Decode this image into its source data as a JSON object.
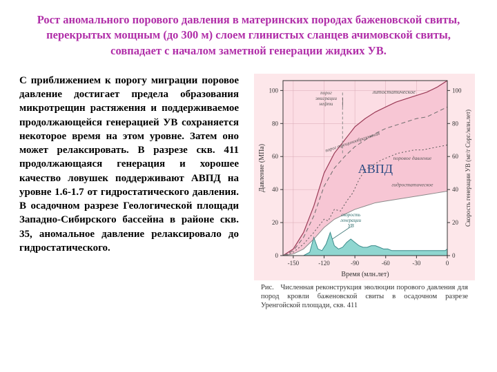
{
  "title": "Рост аномального порового давления в материнских породах баженовской свиты, перекрытых мощным (до 300 м) слоем глинистых сланцев ачимовской свиты, совпадает с началом заметной генерации жидких УВ.",
  "body": "С приближением к порогу миграции поровое давление достигает предела образования микротрещин растяжения и поддерживаемое продолжающейся генерацией УВ сохраняется некоторое время на этом уровне. Затем оно может релаксировать. В разрезе скв. 411 продолжающаяся генерация и хорошее качество ловушек поддерживают АВПД на уровне 1.6-1.7 от гидростатического давления. В осадочном разрезе Геологической площади Западно-Сибирского бассейна в районе скв. 35, аномальное давление релаксировало до гидростатического.",
  "caption_prefix": "Рис.",
  "caption": "Численная реконструкция эволюции порового давления для пород кровли баженовской свиты в осадочном разрезе Уренгойской площади, скв. 411",
  "chart": {
    "type": "line-area",
    "background_color": "#fde7ea",
    "plot_background": "#fcdde4",
    "grid_color": "#d8a8b4",
    "axis_color": "#333333",
    "text_color": "#333333",
    "avpd_label": "АВПД",
    "avpd_label_color": "#2a4a82",
    "avpd_fontsize": 18,
    "x_label": "Время (млн.лет)",
    "y_left_label": "Давление (МПа)",
    "y_right_label": "Скорость генерации УВ (мг/г Cорг./млн.лет)",
    "label_fontsize": 10,
    "tick_fontsize": 9,
    "x_ticks": [
      -150,
      -120,
      -90,
      -60,
      -30,
      0
    ],
    "y_left_ticks": [
      0,
      20,
      40,
      60,
      80,
      100
    ],
    "y_right_ticks": [
      0,
      20,
      40,
      60,
      80,
      100
    ],
    "xlim": [
      -160,
      0
    ],
    "ylim": [
      0,
      106
    ],
    "series": {
      "lithostatic": {
        "label": "литостатическое",
        "color": "#9a3a56",
        "fill": "#f7c6d4",
        "width": 1.2,
        "dash": "none",
        "points": [
          [
            -160,
            0
          ],
          [
            -150,
            4
          ],
          [
            -140,
            14
          ],
          [
            -130,
            30
          ],
          [
            -120,
            50
          ],
          [
            -110,
            62
          ],
          [
            -100,
            70
          ],
          [
            -90,
            78
          ],
          [
            -80,
            83
          ],
          [
            -70,
            87
          ],
          [
            -60,
            90
          ],
          [
            -50,
            93
          ],
          [
            -40,
            95
          ],
          [
            -30,
            97
          ],
          [
            -20,
            99
          ],
          [
            -10,
            102
          ],
          [
            0,
            106
          ]
        ]
      },
      "fracture_threshold": {
        "label": "порог трещинообразования",
        "color": "#6b6b6b",
        "width": 1,
        "dash": "6 4",
        "points": [
          [
            -160,
            0
          ],
          [
            -150,
            3
          ],
          [
            -140,
            11
          ],
          [
            -130,
            24
          ],
          [
            -120,
            42
          ],
          [
            -110,
            53
          ],
          [
            -100,
            60
          ],
          [
            -90,
            66
          ],
          [
            -80,
            70
          ],
          [
            -70,
            74
          ],
          [
            -60,
            77
          ],
          [
            -50,
            79
          ],
          [
            -40,
            81
          ],
          [
            -30,
            83
          ],
          [
            -20,
            84
          ],
          [
            -10,
            87
          ],
          [
            0,
            90
          ]
        ]
      },
      "pore_pressure": {
        "label": "поровое давление",
        "color": "#555555",
        "width": 1,
        "dash": "2 3",
        "points": [
          [
            -160,
            0
          ],
          [
            -150,
            2
          ],
          [
            -140,
            7
          ],
          [
            -130,
            14
          ],
          [
            -120,
            22
          ],
          [
            -116,
            21
          ],
          [
            -110,
            28
          ],
          [
            -104,
            27
          ],
          [
            -98,
            33
          ],
          [
            -92,
            38
          ],
          [
            -86,
            46
          ],
          [
            -80,
            52
          ],
          [
            -72,
            55
          ],
          [
            -64,
            58
          ],
          [
            -56,
            60
          ],
          [
            -48,
            62
          ],
          [
            -40,
            63
          ],
          [
            -32,
            64
          ],
          [
            -24,
            64
          ],
          [
            -16,
            65
          ],
          [
            -8,
            66
          ],
          [
            0,
            67
          ]
        ]
      },
      "hydrostatic": {
        "label": "гидростатическое",
        "color": "#8a8a8a",
        "fill": "#ffffff",
        "width": 1,
        "dash": "none",
        "points": [
          [
            -160,
            0
          ],
          [
            -150,
            1
          ],
          [
            -140,
            4
          ],
          [
            -130,
            10
          ],
          [
            -120,
            17
          ],
          [
            -110,
            22
          ],
          [
            -100,
            25
          ],
          [
            -90,
            28
          ],
          [
            -80,
            30
          ],
          [
            -70,
            32
          ],
          [
            -60,
            33
          ],
          [
            -50,
            34
          ],
          [
            -40,
            35
          ],
          [
            -30,
            36
          ],
          [
            -20,
            37
          ],
          [
            -10,
            38
          ],
          [
            0,
            39
          ]
        ]
      },
      "generation_rate": {
        "label": "скорость генерации УВ",
        "color": "#3a8a8a",
        "fill": "#8fd6d0",
        "width": 1,
        "dash": "none",
        "points": [
          [
            -160,
            0
          ],
          [
            -140,
            0
          ],
          [
            -134,
            2
          ],
          [
            -130,
            11
          ],
          [
            -126,
            4
          ],
          [
            -122,
            3
          ],
          [
            -118,
            7
          ],
          [
            -114,
            14
          ],
          [
            -110,
            6
          ],
          [
            -106,
            4
          ],
          [
            -102,
            5
          ],
          [
            -98,
            8
          ],
          [
            -94,
            10
          ],
          [
            -90,
            8
          ],
          [
            -86,
            6
          ],
          [
            -82,
            5
          ],
          [
            -78,
            5
          ],
          [
            -74,
            6
          ],
          [
            -70,
            6
          ],
          [
            -66,
            5
          ],
          [
            -62,
            4
          ],
          [
            -58,
            4
          ],
          [
            -54,
            3
          ],
          [
            -50,
            3
          ],
          [
            -46,
            3
          ],
          [
            -42,
            3
          ],
          [
            -38,
            3
          ],
          [
            -34,
            3
          ],
          [
            -30,
            3
          ],
          [
            -26,
            3
          ],
          [
            -22,
            3
          ],
          [
            -18,
            3
          ],
          [
            -14,
            3
          ],
          [
            -10,
            3
          ],
          [
            -6,
            3
          ],
          [
            -2,
            3
          ],
          [
            0,
            4
          ]
        ]
      },
      "oil_emigration_threshold": {
        "label": "порог эмиграции нефти",
        "color": "#888888",
        "width": 1,
        "dash": "4 3",
        "points": [
          [
            -102,
            62
          ],
          [
            -102,
            100
          ]
        ]
      }
    },
    "curve_labels": [
      {
        "text": "литостатическое",
        "x": -52,
        "y": 98,
        "rot": 0,
        "size": 8,
        "color": "#555"
      },
      {
        "text": "порог трещинообразования",
        "x": -92,
        "y": 68,
        "rot": -18,
        "size": 7,
        "color": "#555"
      },
      {
        "text": "поровое давление",
        "x": -34,
        "y": 58,
        "rot": 0,
        "size": 7.5,
        "color": "#555"
      },
      {
        "text": "гидростатическое",
        "x": -34,
        "y": 42,
        "rot": 0,
        "size": 7.5,
        "color": "#555"
      },
      {
        "text": "скорость генерации УВ",
        "x": -94,
        "y": 20,
        "rot": 0,
        "size": 7,
        "color": "#2a6a6a",
        "lines": [
          "скорость",
          "генерации",
          "УВ"
        ]
      },
      {
        "text": "порог эмиграции нефти",
        "x": -118,
        "y": 94,
        "rot": 0,
        "size": 7,
        "color": "#555",
        "lines": [
          "порог",
          "эмиграции",
          "нефти"
        ]
      }
    ]
  }
}
